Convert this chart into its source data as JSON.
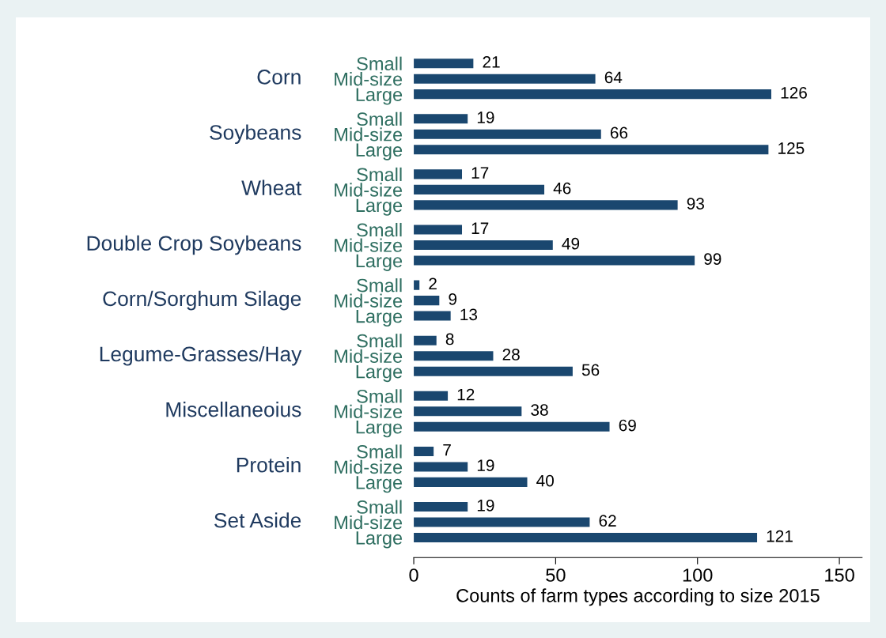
{
  "chart_data": {
    "type": "bar",
    "orientation": "horizontal",
    "categories": [
      "Small",
      "Mid-size",
      "Large",
      "Small",
      "Mid-size",
      "Large",
      "Small",
      "Mid-size",
      "Large",
      "Small",
      "Mid-size",
      "Large",
      "Small",
      "Mid-size",
      "Large",
      "Small",
      "Mid-size",
      "Large",
      "Small",
      "Mid-size",
      "Large",
      "Small",
      "Mid-size",
      "Large",
      "Small",
      "Mid-size",
      "Large"
    ],
    "values": [
      21,
      64,
      126,
      19,
      66,
      125,
      17,
      46,
      93,
      17,
      49,
      99,
      2,
      9,
      13,
      8,
      28,
      56,
      12,
      38,
      69,
      7,
      19,
      40,
      19,
      62,
      121
    ],
    "color": "#1a476f",
    "annotations": [
      "Corn",
      "Soybeans",
      "Wheat",
      "Double Crop Soybeans",
      "Corn/Sorghum Silage",
      "Legume-Grasses/Hay",
      "Miscellaneoius",
      "Protein",
      "Set Aside"
    ],
    "xlabel": "Counts of farm types according to size 2015",
    "xlim": [
      0,
      158
    ],
    "xticks": [
      0,
      50,
      100,
      150
    ],
    "data_labels": true
  }
}
